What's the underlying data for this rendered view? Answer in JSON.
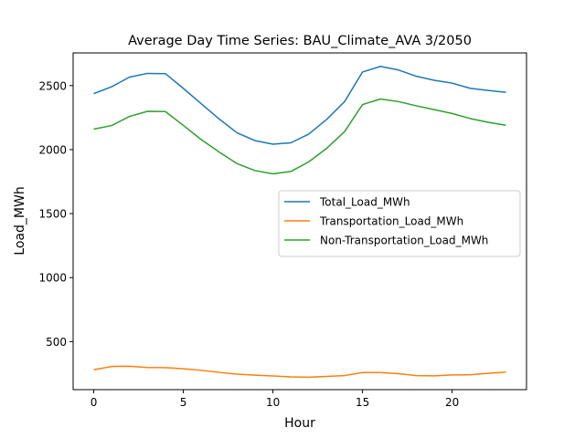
{
  "chart_data": {
    "type": "line",
    "title": "Average Day Time Series: BAU_Climate_AVA 3/2050",
    "xlabel": "Hour",
    "ylabel": "Load_MWh",
    "xlim": [
      -1.15,
      24.15
    ],
    "ylim": [
      125,
      2755
    ],
    "xticks": [
      0,
      5,
      10,
      15,
      20
    ],
    "yticks": [
      500,
      1000,
      1500,
      2000,
      2500
    ],
    "grid": false,
    "legend_position": "center-right",
    "x": [
      0,
      1,
      2,
      3,
      4,
      5,
      6,
      7,
      8,
      9,
      10,
      11,
      12,
      13,
      14,
      15,
      16,
      17,
      18,
      19,
      20,
      21,
      22,
      23
    ],
    "series": [
      {
        "name": "Total_Load_MWh",
        "color": "#1f77b4",
        "values": [
          2437,
          2491,
          2566,
          2595,
          2593,
          2478,
          2358,
          2239,
          2131,
          2070,
          2042,
          2053,
          2121,
          2236,
          2375,
          2606,
          2650,
          2622,
          2573,
          2541,
          2519,
          2479,
          2462,
          2448
        ]
      },
      {
        "name": "Transportation_Load_MWh",
        "color": "#ff7f0e",
        "values": [
          280,
          306,
          308,
          298,
          297,
          288,
          276,
          260,
          246,
          238,
          232,
          225,
          222,
          228,
          235,
          259,
          259,
          250,
          235,
          233,
          240,
          241,
          252,
          262
        ]
      },
      {
        "name": "Non-Transportation_Load_MWh",
        "color": "#2ca02c",
        "values": [
          2160,
          2188,
          2259,
          2299,
          2297,
          2189,
          2078,
          1981,
          1890,
          1836,
          1811,
          1829,
          1904,
          2010,
          2141,
          2352,
          2395,
          2375,
          2342,
          2312,
          2282,
          2243,
          2213,
          2190
        ]
      }
    ]
  }
}
